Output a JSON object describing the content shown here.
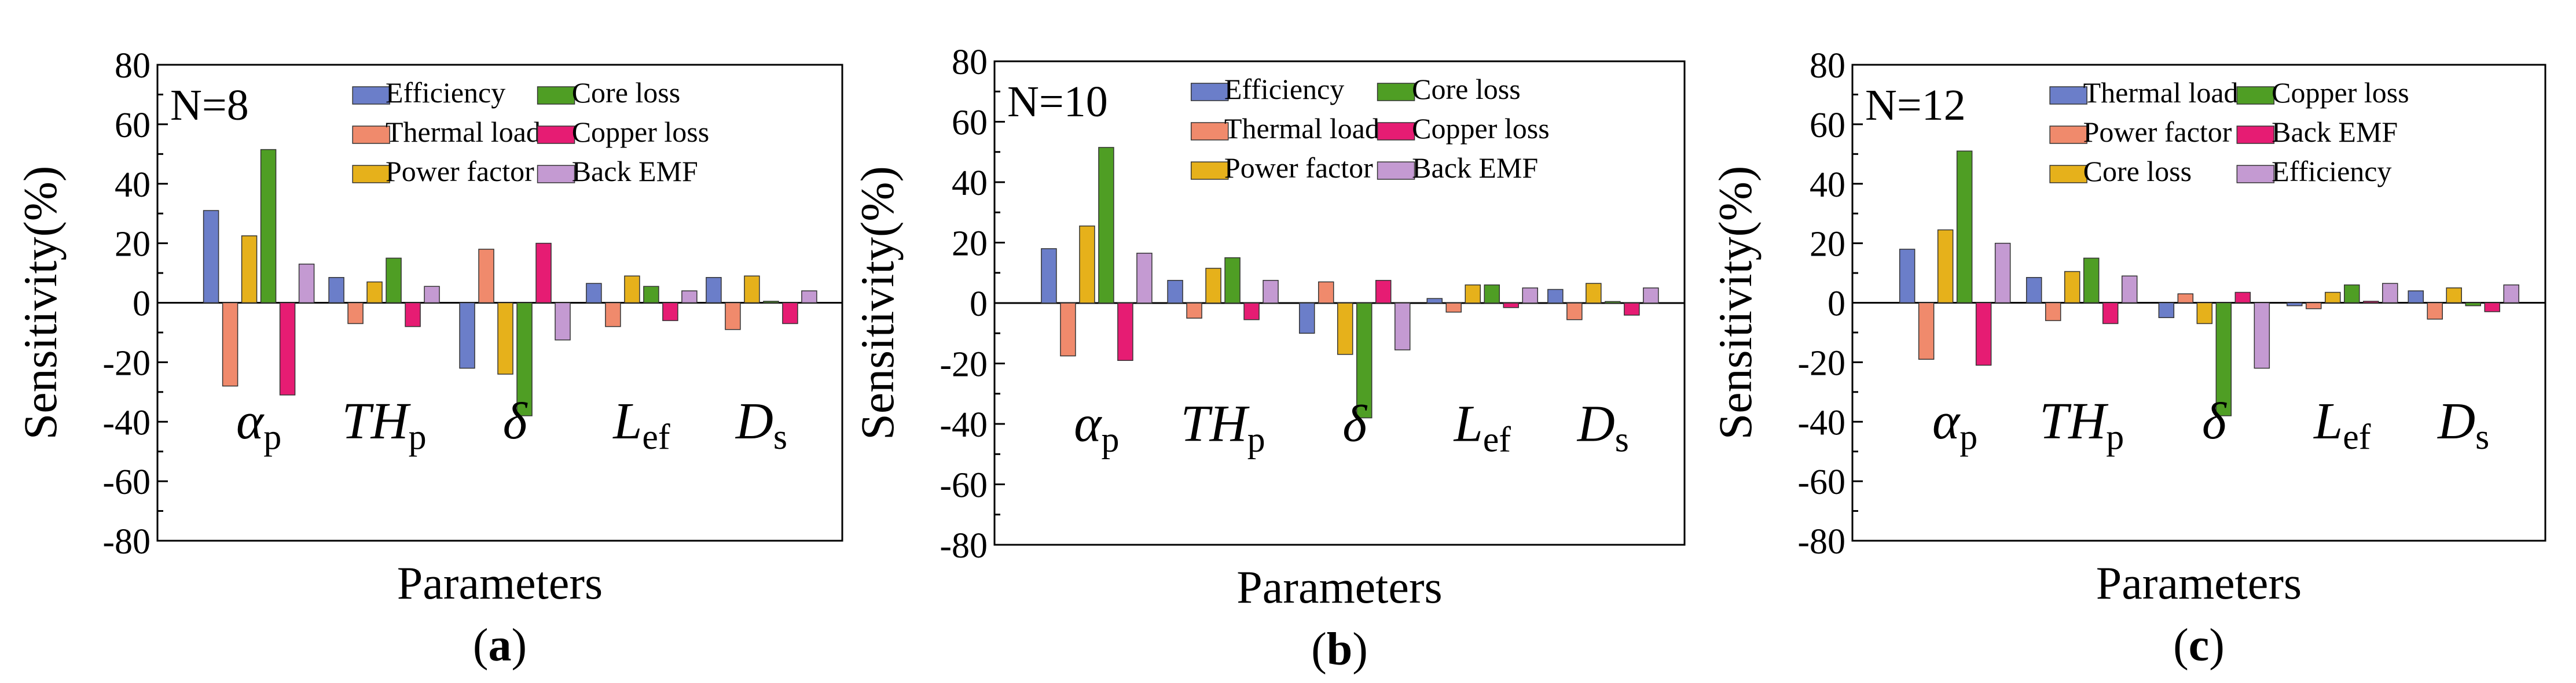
{
  "chart_data": [
    {
      "type": "bar",
      "panel_label": "a",
      "annotation": "N=8",
      "ylabel": "Sensitivity(%)",
      "xlabel": "Parameters",
      "ylim": [
        -80,
        80
      ],
      "yticks": [
        -80,
        -60,
        -40,
        -20,
        0,
        20,
        40,
        60,
        80
      ],
      "grid": false,
      "legend_position": "top",
      "categories": [
        "αp",
        "THp",
        "δ",
        "Lef",
        "Ds"
      ],
      "series": [
        {
          "name": "Efficiency",
          "color": "#6b7ec9",
          "values": [
            31,
            8.5,
            -22,
            6.5,
            8.5
          ]
        },
        {
          "name": "Thermal load",
          "color": "#f08a6c",
          "values": [
            -28,
            -7,
            18,
            -8,
            -9
          ]
        },
        {
          "name": "Power factor",
          "color": "#e6b11b",
          "values": [
            22.5,
            7,
            -24,
            9,
            9
          ]
        },
        {
          "name": "Core loss",
          "color": "#4f9e24",
          "values": [
            51.5,
            15,
            -38,
            5.5,
            0.5
          ]
        },
        {
          "name": "Copper loss",
          "color": "#e61c73",
          "values": [
            -31,
            -8,
            20,
            -6,
            -7
          ]
        },
        {
          "name": "Back EMF",
          "color": "#c49ad2",
          "values": [
            13,
            5.5,
            -12.5,
            4,
            4
          ]
        }
      ]
    },
    {
      "type": "bar",
      "panel_label": "b",
      "annotation": "N=10",
      "ylabel": "Sensitivity(%)",
      "xlabel": "Parameters",
      "ylim": [
        -80,
        80
      ],
      "yticks": [
        -80,
        -60,
        -40,
        -20,
        0,
        20,
        40,
        60,
        80
      ],
      "grid": false,
      "legend_position": "top",
      "categories": [
        "αp",
        "THp",
        "δ",
        "Lef",
        "Ds"
      ],
      "series": [
        {
          "name": "Efficiency",
          "color": "#6b7ec9",
          "values": [
            18,
            7.5,
            -10,
            1.5,
            4.5
          ]
        },
        {
          "name": "Thermal load",
          "color": "#f08a6c",
          "values": [
            -17.5,
            -5,
            7,
            -3,
            -5.5
          ]
        },
        {
          "name": "Power factor",
          "color": "#e6b11b",
          "values": [
            25.5,
            11.5,
            -17,
            6,
            6.5
          ]
        },
        {
          "name": "Core loss",
          "color": "#4f9e24",
          "values": [
            51.5,
            15,
            -38,
            6,
            0.5
          ]
        },
        {
          "name": "Copper loss",
          "color": "#e61c73",
          "values": [
            -19,
            -5.5,
            7.5,
            -1.5,
            -4
          ]
        },
        {
          "name": "Back EMF",
          "color": "#c49ad2",
          "values": [
            16.5,
            7.5,
            -15.5,
            5,
            5
          ]
        }
      ]
    },
    {
      "type": "bar",
      "panel_label": "c",
      "annotation": "N=12",
      "ylabel": "Sensitivity(%)",
      "xlabel": "Parameters",
      "ylim": [
        -80,
        80
      ],
      "yticks": [
        -80,
        -60,
        -40,
        -20,
        0,
        20,
        40,
        60,
        80
      ],
      "grid": false,
      "legend_position": "top",
      "categories": [
        "αp",
        "THp",
        "δ",
        "Lef",
        "Ds"
      ],
      "series": [
        {
          "name": "Thermal load",
          "color": "#6b7ec9",
          "values": [
            18,
            8.5,
            -5,
            -1,
            4
          ]
        },
        {
          "name": "Power factor",
          "color": "#f08a6c",
          "values": [
            -19,
            -6,
            3,
            -2,
            -5.5
          ]
        },
        {
          "name": "Core loss",
          "color": "#e6b11b",
          "values": [
            24.5,
            10.5,
            -7,
            3.5,
            5
          ]
        },
        {
          "name": "Copper loss",
          "color": "#4f9e24",
          "values": [
            51,
            15,
            -38,
            6,
            -1
          ]
        },
        {
          "name": "Back EMF",
          "color": "#e61c73",
          "values": [
            -21,
            -7,
            3.5,
            0.5,
            -3
          ]
        },
        {
          "name": "Efficiency",
          "color": "#c49ad2",
          "values": [
            20,
            9,
            -22,
            6.5,
            6
          ]
        }
      ]
    }
  ]
}
